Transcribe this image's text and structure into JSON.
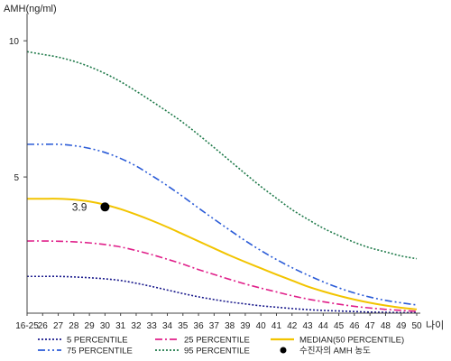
{
  "chart_data": {
    "type": "line",
    "ylabel": "AMH(ng/ml)",
    "xlabel": "나이",
    "ylim": [
      0,
      11
    ],
    "yticks": [
      5,
      10
    ],
    "categories": [
      "16-25",
      "26",
      "27",
      "28",
      "29",
      "30",
      "31",
      "32",
      "33",
      "34",
      "35",
      "36",
      "37",
      "38",
      "39",
      "40",
      "41",
      "42",
      "43",
      "44",
      "45",
      "46",
      "47",
      "48",
      "49",
      "50"
    ],
    "series": [
      {
        "name": "5 PERCENTILE",
        "color": "#1a1a8c",
        "dash": "2,2",
        "values": [
          1.35,
          1.35,
          1.35,
          1.33,
          1.3,
          1.26,
          1.2,
          1.1,
          0.98,
          0.85,
          0.72,
          0.6,
          0.5,
          0.41,
          0.34,
          0.27,
          0.22,
          0.17,
          0.13,
          0.1,
          0.08,
          0.06,
          0.04,
          0.03,
          0.02,
          0.02
        ]
      },
      {
        "name": "25 PERCENTILE",
        "color": "#e0208a",
        "dash": "8,3,2,3",
        "values": [
          2.65,
          2.65,
          2.64,
          2.62,
          2.58,
          2.52,
          2.43,
          2.3,
          2.15,
          1.98,
          1.8,
          1.6,
          1.42,
          1.24,
          1.07,
          0.92,
          0.78,
          0.64,
          0.52,
          0.42,
          0.33,
          0.25,
          0.19,
          0.14,
          0.1,
          0.07
        ]
      },
      {
        "name": "MEDIAN(50 PERCENTILE)",
        "color": "#f2c400",
        "dash": "",
        "values": [
          4.2,
          4.2,
          4.2,
          4.17,
          4.1,
          3.98,
          3.82,
          3.62,
          3.4,
          3.16,
          2.9,
          2.64,
          2.38,
          2.12,
          1.88,
          1.65,
          1.42,
          1.2,
          0.98,
          0.8,
          0.64,
          0.5,
          0.38,
          0.28,
          0.2,
          0.14
        ]
      },
      {
        "name": "75 PERCENTILE",
        "color": "#2a5bd7",
        "dash": "8,3,2,3,2,3",
        "values": [
          6.2,
          6.2,
          6.2,
          6.15,
          6.05,
          5.9,
          5.68,
          5.4,
          5.05,
          4.68,
          4.28,
          3.86,
          3.45,
          3.05,
          2.66,
          2.3,
          1.97,
          1.67,
          1.4,
          1.15,
          0.93,
          0.74,
          0.59,
          0.47,
          0.38,
          0.3
        ]
      },
      {
        "name": "95 PERCENTILE",
        "color": "#1f7a4a",
        "dash": "2,2",
        "values": [
          9.6,
          9.5,
          9.4,
          9.25,
          9.05,
          8.8,
          8.5,
          8.15,
          7.78,
          7.4,
          7.0,
          6.55,
          6.08,
          5.6,
          5.12,
          4.65,
          4.22,
          3.8,
          3.45,
          3.12,
          2.85,
          2.6,
          2.4,
          2.25,
          2.1,
          2.0
        ]
      }
    ],
    "marker": {
      "name": "수진자의 AMH 농도",
      "category": "30",
      "value": 3.9,
      "label": "3.9",
      "color": "#000000"
    },
    "legend_position": "bottom"
  }
}
